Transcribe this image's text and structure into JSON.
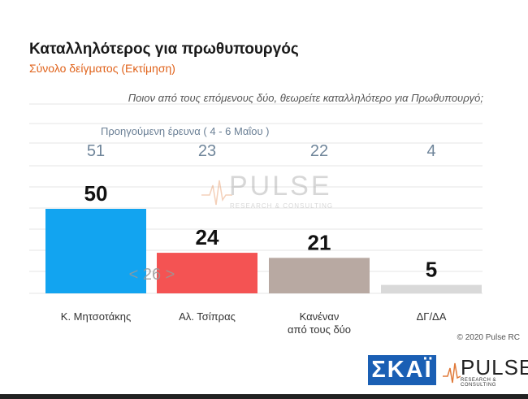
{
  "header": {
    "title": "Καταλληλότερος για πρωθυπουργός",
    "subtitle": "Σύνολο δείγματος   (Εκτίμηση)",
    "question": "Ποιον από τους επόμενους δύο, θεωρείτε καταλληλότερο για Πρωθυπουργό;",
    "previous_label": "Προηγούμενη έρευνα   ( 4 - 6 Μαΐου )"
  },
  "chart_data": {
    "type": "bar",
    "categories": [
      "Κ. Μητσοτάκης",
      "Αλ. Τσίπρας",
      "Κανέναν από τους δύο",
      "ΔΓ/ΔΑ"
    ],
    "category_lines": [
      [
        "Κ. Μητσοτάκης"
      ],
      [
        "Αλ. Τσίπρας"
      ],
      [
        "Κανέναν",
        "από τους δύο"
      ],
      [
        "ΔΓ/ΔΑ"
      ]
    ],
    "values": [
      50,
      24,
      21,
      5
    ],
    "previous_values": [
      51,
      23,
      22,
      4
    ],
    "colors": [
      "#12a4f0",
      "#f45353",
      "#b8a9a2",
      "#d9d9d9"
    ],
    "annotation": "< 26 >",
    "ylim": [
      0,
      60
    ],
    "grid": true
  },
  "watermark": {
    "word": "PULSE",
    "tag": "RESEARCH & CONSULTING"
  },
  "footer": {
    "copyright": "© 2020 Pulse RC",
    "skai_logo": "ΣΚΑΪ",
    "pulse_logo": "PULSE",
    "pulse_tag": "RESEARCH & CONSULTING"
  }
}
